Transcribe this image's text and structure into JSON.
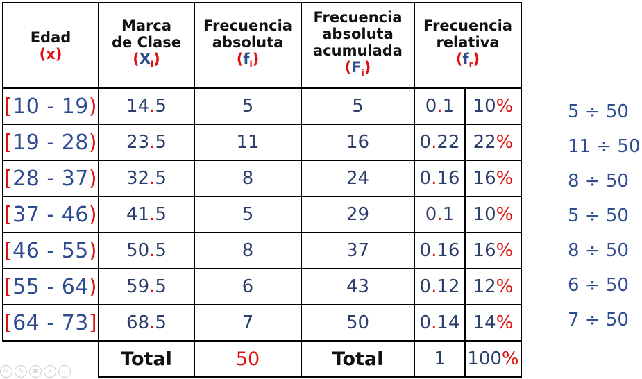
{
  "headers": {
    "edad": {
      "line1": "Edad",
      "sym": "x"
    },
    "marca": {
      "line1": "Marca",
      "line2": "de Clase",
      "sym": "X",
      "sub": "i"
    },
    "fabs": {
      "line1": "Frecuencia",
      "line2": "absoluta",
      "sym": "f",
      "sub": "i"
    },
    "facum": {
      "line1": "Frecuencia",
      "line2": "absoluta",
      "line3": "acumulada",
      "sym": "F",
      "sub": "i"
    },
    "frel": {
      "line1": "Frecuencia",
      "line2": "relativa",
      "sym": "f",
      "sub": "r"
    }
  },
  "rows": [
    {
      "open": "[",
      "range": "10 - 19",
      "close": ")",
      "xi_int": "14",
      "xi_dot": ".",
      "xi_dec": "5",
      "fi": "5",
      "Fi": "5",
      "fr_int": "0",
      "fr_dot": ".",
      "fr_dec": "1",
      "pct": "10",
      "div": "5 ÷ 50"
    },
    {
      "open": "[",
      "range": "19 - 28",
      "close": ")",
      "xi_int": "23",
      "xi_dot": ".",
      "xi_dec": "5",
      "fi": "11",
      "Fi": "16",
      "fr_int": "0",
      "fr_dot": ".",
      "fr_dec": "22",
      "pct": "22",
      "div": "11 ÷ 50"
    },
    {
      "open": "[",
      "range": "28 - 37",
      "close": ")",
      "xi_int": "32",
      "xi_dot": ".",
      "xi_dec": "5",
      "fi": "8",
      "Fi": "24",
      "fr_int": "0",
      "fr_dot": ".",
      "fr_dec": "16",
      "pct": "16",
      "div": "8 ÷ 50"
    },
    {
      "open": "[",
      "range": "37 - 46",
      "close": ")",
      "xi_int": "41",
      "xi_dot": ".",
      "xi_dec": "5",
      "fi": "5",
      "Fi": "29",
      "fr_int": "0",
      "fr_dot": ".",
      "fr_dec": "1",
      "pct": "10",
      "div": "5 ÷ 50"
    },
    {
      "open": "[",
      "range": "46 - 55",
      "close": ")",
      "xi_int": "50",
      "xi_dot": ".",
      "xi_dec": "5",
      "fi": "8",
      "Fi": "37",
      "fr_int": "0",
      "fr_dot": ".",
      "fr_dec": "16",
      "pct": "16",
      "div": "8 ÷ 50"
    },
    {
      "open": "[",
      "range": "55 - 64",
      "close": ")",
      "xi_int": "59",
      "xi_dot": ".",
      "xi_dec": "5",
      "fi": "6",
      "Fi": "43",
      "fr_int": "0",
      "fr_dot": ".",
      "fr_dec": "12",
      "pct": "12",
      "div": "6 ÷ 50"
    },
    {
      "open": "[",
      "range": "64 - 73",
      "close": "]",
      "xi_int": "68",
      "xi_dot": ".",
      "xi_dec": "5",
      "fi": "7",
      "Fi": "50",
      "fr_int": "0",
      "fr_dot": ".",
      "fr_dec": "14",
      "pct": "14",
      "div": "7 ÷ 50"
    }
  ],
  "totals": {
    "label1": "Total",
    "fi_total": "50",
    "label2": "Total",
    "fr_total": "1",
    "pct_total": "100",
    "pct_sign": "%"
  },
  "pct_sign": "%",
  "colors": {
    "blue": "#2e4b8f",
    "red": "#e01010",
    "black": "#111111"
  }
}
